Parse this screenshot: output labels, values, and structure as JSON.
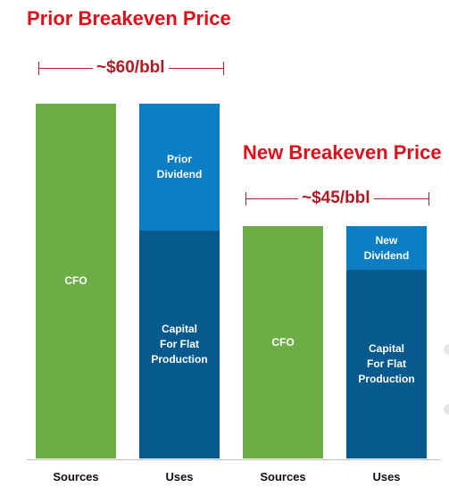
{
  "colors": {
    "heading": "#e0101a",
    "annotation": "#b21a24",
    "cfo": "#6cae45",
    "dividend": "#0b7ec4",
    "capital": "#065a8e",
    "bracket": "#a52a2a"
  },
  "chart_data": {
    "type": "bar",
    "stacked": true,
    "grid": false,
    "legend": "none",
    "scenarios": [
      {
        "title": "Prior Breakeven Price",
        "annotation": "~$60/bbl",
        "bars": [
          {
            "category": "Sources",
            "segments": [
              {
                "label": "CFO",
                "value": 100,
                "color_key": "cfo"
              }
            ]
          },
          {
            "category": "Uses",
            "segments": [
              {
                "label": "Capital\nFor Flat\nProduction",
                "value": 64.3,
                "color_key": "capital"
              },
              {
                "label": "Prior\nDividend",
                "value": 35.7,
                "color_key": "dividend"
              }
            ]
          }
        ]
      },
      {
        "title": "New Breakeven Price",
        "annotation": "~$45/bbl",
        "bars": [
          {
            "category": "Sources",
            "segments": [
              {
                "label": "CFO",
                "value": 65.4,
                "color_key": "cfo"
              }
            ]
          },
          {
            "category": "Uses",
            "segments": [
              {
                "label": "Capital\nFor Flat\nProduction",
                "value": 53.1,
                "color_key": "capital"
              },
              {
                "label": "New\nDividend",
                "value": 12.3,
                "color_key": "dividend"
              }
            ]
          }
        ]
      }
    ]
  }
}
